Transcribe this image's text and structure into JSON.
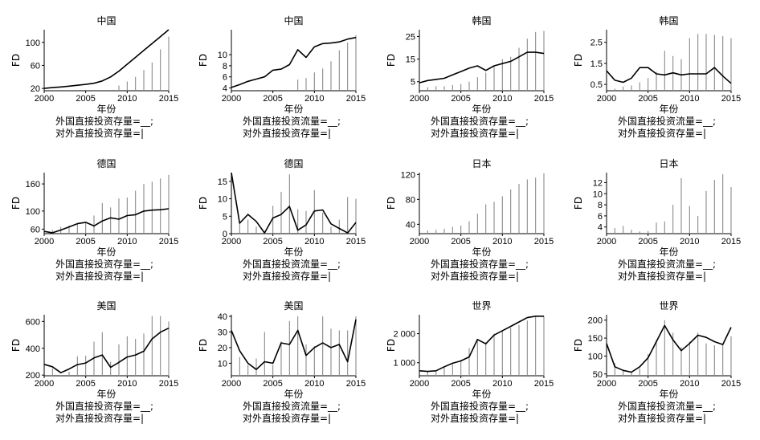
{
  "chart_data": [
    {
      "type": "bar+line",
      "title": "中国",
      "ylabel": "FD",
      "xlabel": "年份",
      "xlim": [
        2000,
        2015
      ],
      "ylim": [
        16,
        122
      ],
      "yticks": [
        20,
        60,
        100
      ],
      "xticks": [
        2000,
        2005,
        2010,
        2015
      ],
      "bars_name": "外国直接投资存量=__;",
      "line_name": "对外直接投资存量=|",
      "bars_x": [
        2009,
        2010,
        2011,
        2012,
        2013,
        2014,
        2015
      ],
      "bars": [
        25,
        32,
        40,
        52,
        65,
        88,
        110
      ],
      "line_x": [
        2000,
        2001,
        2002,
        2003,
        2004,
        2005,
        2006,
        2007,
        2008,
        2009,
        2010,
        2011,
        2012,
        2013,
        2014,
        2015
      ],
      "line": [
        20,
        21.5,
        22.5,
        24,
        25.5,
        27,
        29,
        33,
        40,
        50,
        62,
        74,
        86,
        98,
        110,
        122
      ]
    },
    {
      "type": "bar+line",
      "title": "中国",
      "ylabel": "FD",
      "xlabel": "年份",
      "xlim": [
        2000,
        2015
      ],
      "ylim": [
        3.5,
        14.5
      ],
      "yticks": [
        4,
        6,
        8,
        10
      ],
      "xticks": [
        2000,
        2005,
        2010,
        2015
      ],
      "bars_name": "外国直接投资流量=__;",
      "line_name": "对外直接投资存量=|",
      "bars_x": [
        2008,
        2009,
        2010,
        2011,
        2012,
        2013,
        2014,
        2015
      ],
      "bars": [
        5.5,
        5.8,
        6.8,
        7.5,
        8.8,
        10.8,
        12.2,
        13.5
      ],
      "line_x": [
        2000,
        2001,
        2002,
        2003,
        2004,
        2005,
        2006,
        2007,
        2008,
        2009,
        2010,
        2011,
        2012,
        2013,
        2014,
        2015
      ],
      "line": [
        4.1,
        4.6,
        5.2,
        5.6,
        6.0,
        7.2,
        7.4,
        8.2,
        10.9,
        9.5,
        11.4,
        12.0,
        12.1,
        12.3,
        12.8,
        13.1
      ]
    },
    {
      "type": "bar+line",
      "title": "韩国",
      "ylabel": "FD",
      "xlabel": "年份",
      "xlim": [
        2000,
        2015
      ],
      "ylim": [
        1,
        28
      ],
      "yticks": [
        5,
        15,
        25
      ],
      "xticks": [
        2000,
        2005,
        2010,
        2015
      ],
      "bars_name": "外国直接投资存量=__;",
      "line_name": "对外直接投资存量=|",
      "bars_x": [
        2001,
        2002,
        2003,
        2004,
        2005,
        2006,
        2007,
        2008,
        2009,
        2010,
        2011,
        2012,
        2013,
        2014,
        2015
      ],
      "bars": [
        2.5,
        3,
        3,
        3.5,
        4,
        5,
        7,
        9,
        12,
        15,
        16,
        20,
        24,
        27,
        27.5
      ],
      "line_x": [
        2000,
        2001,
        2002,
        2003,
        2004,
        2005,
        2006,
        2007,
        2008,
        2009,
        2010,
        2011,
        2012,
        2013,
        2014,
        2015
      ],
      "line": [
        4.5,
        5.5,
        6,
        6.5,
        8,
        9.5,
        11,
        12,
        10,
        12,
        13,
        14,
        16,
        18,
        18,
        17.5
      ]
    },
    {
      "type": "bar+line",
      "title": "韩国",
      "ylabel": "FD",
      "xlabel": "年份",
      "xlim": [
        2000,
        2015
      ],
      "ylim": [
        0.2,
        3.1
      ],
      "yticks": [
        0.5,
        1.5,
        2.5
      ],
      "xticks": [
        2000,
        2005,
        2010,
        2015
      ],
      "bars_name": "外国直接投资流量=__;",
      "line_name": "对外直接投资存量=|",
      "bars_x": [
        2001,
        2002,
        2003,
        2004,
        2005,
        2006,
        2007,
        2008,
        2009,
        2010,
        2011,
        2012,
        2013,
        2014,
        2015
      ],
      "bars": [
        0.3,
        0.4,
        0.45,
        0.6,
        0.8,
        1.1,
        2.1,
        1.85,
        1.7,
        2.7,
        2.9,
        2.9,
        2.85,
        2.8,
        2.7
      ],
      "line_x": [
        2000,
        2001,
        2002,
        2003,
        2004,
        2005,
        2006,
        2007,
        2008,
        2009,
        2010,
        2011,
        2012,
        2013,
        2014,
        2015
      ],
      "line": [
        1.15,
        0.7,
        0.6,
        0.8,
        1.3,
        1.3,
        1.0,
        0.95,
        1.05,
        0.95,
        1.0,
        1.0,
        1.0,
        1.3,
        0.9,
        0.55
      ]
    },
    {
      "type": "bar+line",
      "title": "德国",
      "ylabel": "FD",
      "xlabel": "年份",
      "xlim": [
        2000,
        2015
      ],
      "ylim": [
        50,
        185
      ],
      "yticks": [
        60,
        100,
        160
      ],
      "xticks": [
        2000,
        2005,
        2010,
        2015
      ],
      "bars_name": "外国直接投资存量=__;",
      "line_name": "对外直接投资存量=|",
      "bars_x": [
        2001,
        2002,
        2003,
        2004,
        2005,
        2006,
        2007,
        2008,
        2009,
        2010,
        2011,
        2012,
        2013,
        2014,
        2015
      ],
      "bars": [
        58,
        65,
        68,
        72,
        76,
        90,
        118,
        108,
        128,
        130,
        145,
        160,
        165,
        172,
        180
      ],
      "line_x": [
        2000,
        2001,
        2002,
        2003,
        2004,
        2005,
        2006,
        2007,
        2008,
        2009,
        2010,
        2011,
        2012,
        2013,
        2014,
        2015
      ],
      "line": [
        55,
        52,
        58,
        65,
        72,
        75,
        67,
        78,
        85,
        82,
        90,
        92,
        100,
        102,
        103,
        105
      ]
    },
    {
      "type": "bar+line",
      "title": "德国",
      "ylabel": "FD",
      "xlabel": "年份",
      "xlim": [
        2000,
        2015
      ],
      "ylim": [
        0,
        17.5
      ],
      "yticks": [
        0,
        5,
        10,
        15
      ],
      "xticks": [
        2000,
        2005,
        2010,
        2015
      ],
      "bars_name": "外国直接投资流量=__;",
      "line_name": "对外直接投资存量=|",
      "bars_x": [
        2001,
        2002,
        2003,
        2004,
        2005,
        2006,
        2007,
        2008,
        2009,
        2010,
        2011,
        2012,
        2013,
        2014,
        2015
      ],
      "bars": [
        3,
        4,
        2,
        0.5,
        8,
        12,
        17,
        7,
        6.5,
        12.5,
        6,
        2,
        4,
        10.5,
        10
      ],
      "line_x": [
        2000,
        2001,
        2002,
        2003,
        2004,
        2005,
        2006,
        2007,
        2008,
        2009,
        2010,
        2011,
        2012,
        2013,
        2014,
        2015
      ],
      "line": [
        17.5,
        3,
        5.5,
        3.5,
        0.2,
        4.5,
        5.5,
        7.8,
        1,
        2.5,
        6.5,
        6.8,
        2.8,
        1.5,
        0.2,
        3.2
      ]
    },
    {
      "type": "bar",
      "title": "日本",
      "ylabel": "FD",
      "xlabel": "年份",
      "xlim": [
        2000,
        2015
      ],
      "ylim": [
        25,
        123
      ],
      "yticks": [
        40,
        80,
        120
      ],
      "xticks": [
        2000,
        2005,
        2010,
        2015
      ],
      "bars_name": "外国直接投资存量=__;",
      "line_name": "对外直接投资存量=|",
      "bars_x": [
        2001,
        2002,
        2003,
        2004,
        2005,
        2006,
        2007,
        2008,
        2009,
        2010,
        2011,
        2012,
        2013,
        2014,
        2015
      ],
      "bars": [
        30,
        31,
        33,
        36,
        38,
        45,
        57,
        72,
        76,
        85,
        96,
        105,
        112,
        115,
        122
      ],
      "line_x": [],
      "line": []
    },
    {
      "type": "bar",
      "title": "日本",
      "ylabel": "FD",
      "xlabel": "年份",
      "xlim": [
        2000,
        2015
      ],
      "ylim": [
        2.8,
        13.8
      ],
      "yticks": [
        4,
        6,
        8,
        10,
        12
      ],
      "xticks": [
        2000,
        2005,
        2010,
        2015
      ],
      "bars_name": "外国直接投资流量=__;",
      "line_name": "对外直接投资存量=|",
      "bars_x": [
        2001,
        2002,
        2003,
        2004,
        2005,
        2006,
        2007,
        2008,
        2009,
        2010,
        2011,
        2012,
        2013,
        2014,
        2015
      ],
      "bars": [
        3.8,
        4.2,
        3.5,
        3.2,
        3.3,
        4.8,
        5,
        8,
        12.8,
        7.8,
        6,
        10.5,
        12.5,
        13.5,
        11.2
      ],
      "line_x": [],
      "line": []
    },
    {
      "type": "bar+line",
      "title": "美国",
      "ylabel": "FD",
      "xlabel": "年份",
      "xlim": [
        2000,
        2015
      ],
      "ylim": [
        195,
        650
      ],
      "yticks": [
        200,
        400,
        600
      ],
      "xticks": [
        2000,
        2005,
        2010,
        2015
      ],
      "bars_name": "外国直接投资存量=__;",
      "line_name": "对外直接投资存量=|",
      "bars_x": [
        2001,
        2002,
        2003,
        2004,
        2005,
        2006,
        2007,
        2008,
        2009,
        2010,
        2011,
        2012,
        2013,
        2014,
        2015
      ],
      "bars": [
        250,
        200,
        225,
        340,
        345,
        450,
        520,
        300,
        430,
        490,
        470,
        510,
        640,
        640,
        600
      ],
      "line_x": [
        2000,
        2001,
        2002,
        2003,
        2004,
        2005,
        2006,
        2007,
        2008,
        2009,
        2010,
        2011,
        2012,
        2013,
        2014,
        2015
      ],
      "line": [
        280,
        262,
        218,
        245,
        278,
        290,
        328,
        350,
        258,
        295,
        335,
        350,
        378,
        470,
        520,
        550
      ]
    },
    {
      "type": "bar+line",
      "title": "美国",
      "ylabel": "FD",
      "xlabel": "年份",
      "xlim": [
        2000,
        2015
      ],
      "ylim": [
        2,
        41
      ],
      "yticks": [
        10,
        20,
        30,
        40
      ],
      "xticks": [
        2000,
        2005,
        2010,
        2015
      ],
      "bars_name": "外国直接投资流量=__;",
      "line_name": "对外直接投资存量=|",
      "bars_x": [
        2001,
        2002,
        2003,
        2004,
        2005,
        2006,
        2007,
        2008,
        2009,
        2010,
        2011,
        2012,
        2013,
        2014,
        2015
      ],
      "bars": [
        14,
        9,
        13,
        30,
        9,
        24,
        37,
        40,
        22,
        21,
        40,
        32,
        31,
        31,
        40
      ],
      "line_x": [
        2000,
        2001,
        2002,
        2003,
        2004,
        2005,
        2006,
        2007,
        2008,
        2009,
        2010,
        2011,
        2012,
        2013,
        2014,
        2015
      ],
      "line": [
        31,
        18,
        10,
        6,
        11,
        10,
        23,
        22,
        31,
        15,
        20,
        23,
        20,
        22,
        11,
        38
      ]
    },
    {
      "type": "bar+line",
      "title": "世界",
      "ylabel": "FD",
      "xlabel": "年份",
      "xlim": [
        2000,
        2015
      ],
      "ylim": [
        550,
        2650
      ],
      "yticks": [
        1000,
        2000
      ],
      "xticks": [
        2000,
        2005,
        2010,
        2015
      ],
      "bars_name": "外国直接投资存量=__;",
      "line_name": "对外直接投资存量=|",
      "bars_x": [
        2001,
        2002,
        2003,
        2004,
        2005,
        2006,
        2007,
        2008,
        2009,
        2010,
        2011,
        2012,
        2013,
        2014,
        2015
      ],
      "bars": [
        700,
        720,
        850,
        950,
        1100,
        1500,
        1800,
        1700,
        2000,
        2100,
        2200,
        2300,
        2450,
        2600,
        2600
      ],
      "line_x": [
        2000,
        2001,
        2002,
        2003,
        2004,
        2005,
        2006,
        2007,
        2008,
        2009,
        2010,
        2011,
        2012,
        2013,
        2014,
        2015
      ],
      "line": [
        720,
        700,
        720,
        860,
        980,
        1060,
        1200,
        1800,
        1650,
        1950,
        2100,
        2250,
        2400,
        2550,
        2600,
        2600
      ]
    },
    {
      "type": "bar+line",
      "title": "世界",
      "ylabel": "FD",
      "xlabel": "年份",
      "xlim": [
        2000,
        2015
      ],
      "ylim": [
        45,
        215
      ],
      "yticks": [
        50,
        100,
        150,
        200
      ],
      "xticks": [
        2000,
        2005,
        2010,
        2015
      ],
      "bars_name": "外国直接投资流量=__;",
      "line_name": "对外直接投资存量=|",
      "bars_x": [
        2001,
        2002,
        2003,
        2004,
        2005,
        2006,
        2007,
        2008,
        2009,
        2010,
        2011,
        2012,
        2013,
        2014,
        2015
      ],
      "bars": [
        80,
        60,
        55,
        65,
        105,
        145,
        200,
        165,
        125,
        140,
        165,
        135,
        130,
        130,
        155
      ],
      "line_x": [
        2000,
        2001,
        2002,
        2003,
        2004,
        2005,
        2006,
        2007,
        2008,
        2009,
        2010,
        2011,
        2012,
        2013,
        2014,
        2015
      ],
      "line": [
        135,
        70,
        60,
        55,
        70,
        95,
        140,
        185,
        145,
        115,
        135,
        158,
        152,
        140,
        132,
        180
      ]
    }
  ]
}
